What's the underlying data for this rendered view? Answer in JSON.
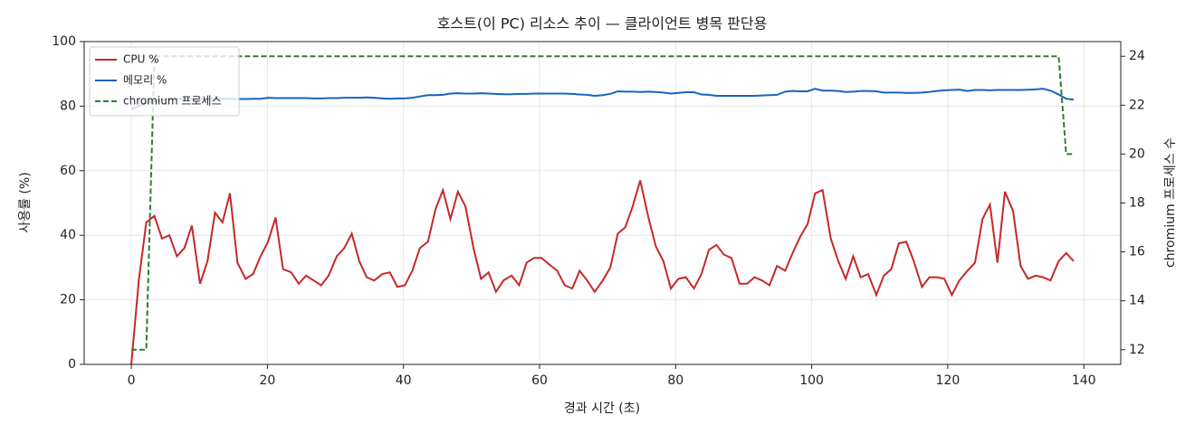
{
  "chart_data": {
    "type": "line",
    "title": "호스트(이 PC) 리소스 추이 — 클라이언트 병목 판단용",
    "xlabel": "경과 시간 (초)",
    "ylabel": "사용률 (%)",
    "y2label": "chromium 프로세스 수",
    "x": [
      0,
      1.1,
      2.2,
      3.4,
      4.5,
      5.6,
      6.7,
      7.8,
      8.9,
      10.1,
      11.2,
      12.3,
      13.4,
      14.5,
      15.6,
      16.8,
      17.9,
      19,
      20.1,
      21.2,
      22.3,
      23.5,
      24.6,
      25.7,
      26.8,
      27.9,
      29,
      30.2,
      31.3,
      32.4,
      33.5,
      34.6,
      35.7,
      36.9,
      38,
      39.1,
      40.2,
      41.3,
      42.4,
      43.6,
      44.7,
      45.8,
      46.9,
      48,
      49.1,
      50.3,
      51.4,
      52.5,
      53.6,
      54.7,
      55.9,
      57,
      58.1,
      59.2,
      60.3,
      61.4,
      62.6,
      63.7,
      64.8,
      65.9,
      67,
      68.1,
      69.3,
      70.4,
      71.5,
      72.6,
      73.7,
      74.8,
      76,
      77.1,
      78.2,
      79.3,
      80.4,
      81.5,
      82.7,
      83.8,
      84.9,
      86,
      87.1,
      88.2,
      89.4,
      90.5,
      91.6,
      92.7,
      93.8,
      94.9,
      96.1,
      97.2,
      98.3,
      99.4,
      100.5,
      101.6,
      102.8,
      103.9,
      105,
      106.1,
      107.2,
      108.3,
      109.5,
      110.6,
      111.7,
      112.8,
      113.9,
      115,
      116.2,
      117.3,
      118.4,
      119.5,
      120.6,
      121.7,
      122.9,
      124,
      125.1,
      126.2,
      127.3,
      128.4,
      129.6,
      130.7,
      131.8,
      132.9,
      134,
      135.1,
      136.3,
      137.4,
      138.5
    ],
    "series": [
      {
        "name": "CPU %",
        "color": "#c62828",
        "dash": false,
        "values": [
          0,
          26,
          44,
          46,
          39,
          40,
          33.5,
          36,
          43,
          25,
          32,
          47,
          44,
          53,
          31.5,
          26.5,
          28,
          33.5,
          38,
          45.5,
          29.5,
          28.5,
          25,
          27.5,
          26,
          24.5,
          27.5,
          33.5,
          36,
          40.5,
          32,
          27,
          26,
          28,
          28.5,
          24,
          24.5,
          29,
          36,
          38,
          48,
          54,
          45,
          53.5,
          49,
          36,
          26.5,
          28.5,
          22.5,
          26,
          27.5,
          24.5,
          31.5,
          33,
          33,
          31,
          29,
          24.5,
          23.5,
          29,
          26,
          22.5,
          26,
          30,
          40.5,
          42.5,
          49,
          57,
          45.5,
          36.5,
          32,
          23.5,
          26.5,
          27,
          23.5,
          28,
          35.5,
          37,
          34,
          33,
          25,
          25,
          27,
          26,
          24.5,
          30.5,
          29,
          34.5,
          39.5,
          43.5,
          53,
          54,
          39,
          32,
          26.5,
          33.5,
          27,
          28,
          21.5,
          27.5,
          29.5,
          37.5,
          38,
          32,
          24,
          27,
          27,
          26.5,
          21.5,
          26,
          29,
          31.5,
          45,
          49.5,
          31.5,
          53.5,
          47.5,
          30.5,
          26.5,
          27.5,
          27,
          26,
          32,
          34.5,
          32
        ]
      },
      {
        "name": "메모리 %",
        "color": "#1565c0",
        "dash": false,
        "values": [
          79,
          80,
          81,
          81.5,
          82,
          82.2,
          82.3,
          82.2,
          82.3,
          82.2,
          82.3,
          82.2,
          82.2,
          82.3,
          82.2,
          82.2,
          82.3,
          82.3,
          82.6,
          82.5,
          82.5,
          82.5,
          82.5,
          82.5,
          82.4,
          82.4,
          82.5,
          82.5,
          82.6,
          82.6,
          82.6,
          82.7,
          82.6,
          82.4,
          82.3,
          82.4,
          82.4,
          82.6,
          83,
          83.4,
          83.4,
          83.5,
          83.9,
          84,
          83.9,
          83.9,
          84,
          83.9,
          83.8,
          83.7,
          83.7,
          83.8,
          83.8,
          83.9,
          83.9,
          83.9,
          83.9,
          83.9,
          83.8,
          83.6,
          83.5,
          83.2,
          83.4,
          83.8,
          84.6,
          84.5,
          84.5,
          84.4,
          84.5,
          84.4,
          84.2,
          83.9,
          84.1,
          84.3,
          84.3,
          83.6,
          83.5,
          83.2,
          83.2,
          83.2,
          83.2,
          83.2,
          83.2,
          83.3,
          83.4,
          83.5,
          84.5,
          84.7,
          84.6,
          84.6,
          85.4,
          84.8,
          84.8,
          84.7,
          84.4,
          84.5,
          84.7,
          84.7,
          84.6,
          84.2,
          84.2,
          84.2,
          84.1,
          84.1,
          84.2,
          84.4,
          84.7,
          84.9,
          85,
          85.1,
          84.7,
          85,
          85,
          84.9,
          85,
          85,
          85,
          85,
          85.1,
          85.2,
          85.4,
          84.8,
          83.6,
          82.3,
          82
        ]
      },
      {
        "name": "chromium 프로세스",
        "color": "#2e7d32",
        "dash": true,
        "axis": "y2",
        "values": [
          12,
          12,
          12,
          24,
          24,
          24,
          24,
          24,
          24,
          24,
          24,
          24,
          24,
          24,
          24,
          24,
          24,
          24,
          24,
          24,
          24,
          24,
          24,
          24,
          24,
          24,
          24,
          24,
          24,
          24,
          24,
          24,
          24,
          24,
          24,
          24,
          24,
          24,
          24,
          24,
          24,
          24,
          24,
          24,
          24,
          24,
          24,
          24,
          24,
          24,
          24,
          24,
          24,
          24,
          24,
          24,
          24,
          24,
          24,
          24,
          24,
          24,
          24,
          24,
          24,
          24,
          24,
          24,
          24,
          24,
          24,
          24,
          24,
          24,
          24,
          24,
          24,
          24,
          24,
          24,
          24,
          24,
          24,
          24,
          24,
          24,
          24,
          24,
          24,
          24,
          24,
          24,
          24,
          24,
          24,
          24,
          24,
          24,
          24,
          24,
          24,
          24,
          24,
          24,
          24,
          24,
          24,
          24,
          24,
          24,
          24,
          24,
          24,
          24,
          24,
          24,
          24,
          24,
          24,
          24,
          24,
          24,
          24,
          20,
          20
        ]
      }
    ],
    "xlim": [
      -6.925,
      145.425
    ],
    "xticks": [
      0,
      20,
      40,
      60,
      80,
      100,
      120,
      140
    ],
    "ylim": [
      0,
      100
    ],
    "yticks": [
      0,
      20,
      40,
      60,
      80,
      100
    ],
    "y2lim": [
      11.4,
      24.6
    ],
    "y2ticks": [
      12,
      14,
      16,
      18,
      20,
      22,
      24
    ],
    "grid": true,
    "legend": "upper left"
  }
}
